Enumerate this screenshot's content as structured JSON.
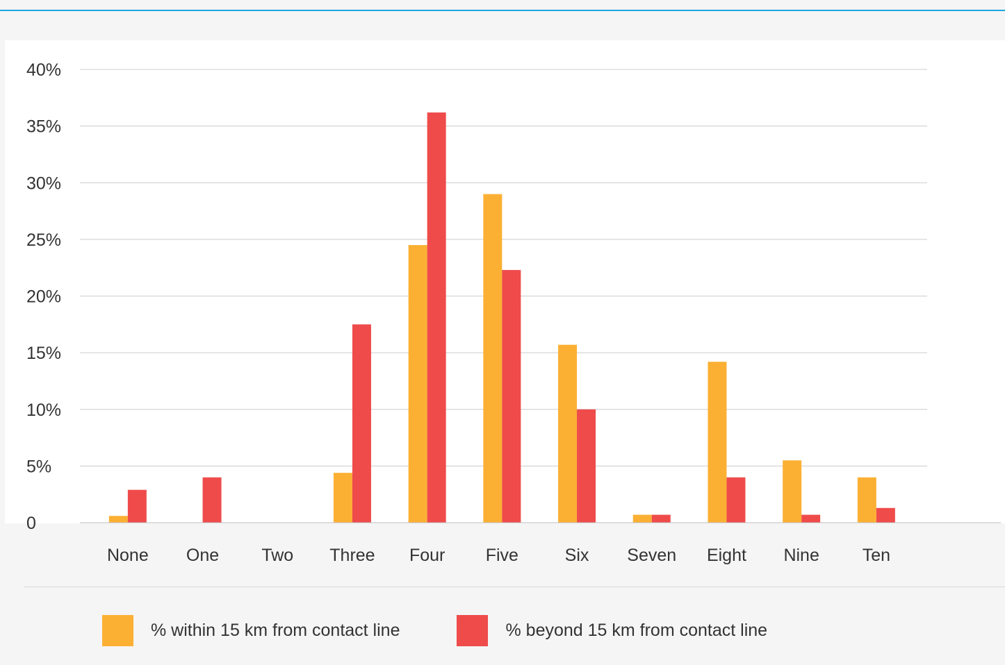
{
  "colors": {
    "accent_rule": "#19a7e0",
    "series_within": "#fbb034",
    "series_beyond": "#ef4b4b",
    "gridline": "#cccccc"
  },
  "chart_data": {
    "type": "bar",
    "title": "",
    "xlabel": "",
    "ylabel": "",
    "categories": [
      "None",
      "One",
      "Two",
      "Three",
      "Four",
      "Five",
      "Six",
      "Seven",
      "Eight",
      "Nine",
      "Ten"
    ],
    "series": [
      {
        "name": "% within 15 km from contact line",
        "color": "#fbb034",
        "values": [
          0.6,
          0,
          0,
          4.4,
          24.5,
          29.0,
          15.7,
          0.7,
          14.2,
          5.5,
          4.0
        ]
      },
      {
        "name": "% beyond 15 km from contact line",
        "color": "#ef4b4b",
        "values": [
          2.9,
          4.0,
          0,
          17.5,
          36.2,
          22.3,
          10.0,
          0.7,
          4.0,
          0.7,
          1.3
        ]
      }
    ],
    "ylim": [
      0,
      40
    ],
    "yticks": [
      0,
      5,
      10,
      15,
      20,
      25,
      30,
      35,
      40
    ],
    "ytick_labels": [
      "0",
      "5%",
      "10%",
      "15%",
      "20%",
      "25%",
      "30%",
      "35%",
      "40%"
    ],
    "grid": true,
    "legend_position": "bottom"
  }
}
